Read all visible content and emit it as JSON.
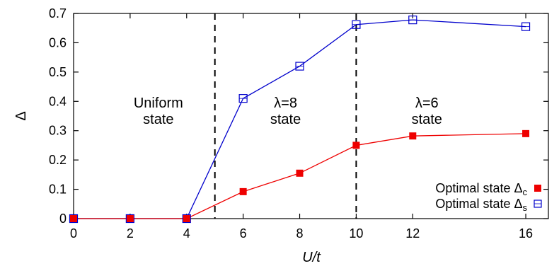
{
  "chart_data": {
    "type": "line",
    "title": "",
    "xlabel": "U/t",
    "ylabel": "Δ",
    "xlim": [
      0,
      16.8
    ],
    "ylim": [
      0,
      0.7
    ],
    "xticks": [
      0,
      2,
      4,
      6,
      8,
      10,
      12,
      16
    ],
    "yticks": [
      0,
      0.1,
      0.2,
      0.3,
      0.4,
      0.5,
      0.6,
      0.7
    ],
    "ytick_labels": [
      "0",
      "0.1",
      "0.2",
      "0.3",
      "0.4",
      "0.5",
      "0.6",
      "0.7"
    ],
    "grid": false,
    "legend_position": "bottom-right",
    "x": [
      0,
      2,
      4,
      6,
      8,
      10,
      12,
      16
    ],
    "series": [
      {
        "name": "Optimal state Δc",
        "legend_main": "Optimal state Δ",
        "legend_sub": "c",
        "color": "#ee0000",
        "marker": "filled-square",
        "values": [
          0,
          0,
          0,
          0.092,
          0.155,
          0.25,
          0.282,
          0.29
        ]
      },
      {
        "name": "Optimal state Δs",
        "legend_main": "Optimal state Δ",
        "legend_sub": "s",
        "color": "#0000cc",
        "marker": "open-square",
        "values": [
          0,
          0,
          0,
          0.41,
          0.52,
          0.662,
          0.678,
          0.655
        ]
      }
    ],
    "vlines": [
      5,
      10
    ],
    "regions": [
      {
        "x": 3,
        "line1": "Uniform",
        "line2": "state"
      },
      {
        "x": 7.5,
        "line1": "λ=8",
        "line2": "state"
      },
      {
        "x": 12.5,
        "line1": "λ=6",
        "line2": "state"
      }
    ]
  }
}
